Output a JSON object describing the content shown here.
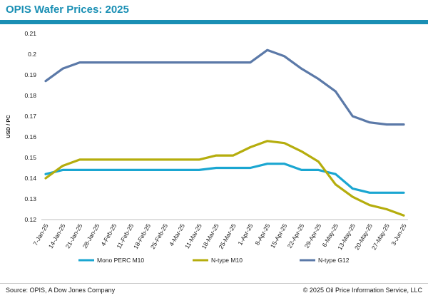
{
  "header": {
    "title": "OPIS Wafer Prices: 2025"
  },
  "footer": {
    "source": "Source: OPIS, A Dow Jones Company",
    "copyright": "© 2025 Oil Price Information Service, LLC"
  },
  "chart_data": {
    "type": "line",
    "title": "OPIS Wafer Prices: 2025",
    "xlabel": "",
    "ylabel": "USD / PC",
    "ylim": [
      0.12,
      0.21
    ],
    "yticks": [
      "0.12",
      "0.13",
      "0.14",
      "0.15",
      "0.16",
      "0.17",
      "0.18",
      "0.19",
      "0.2",
      "0.21"
    ],
    "grid": false,
    "legend_position": "bottom",
    "categories": [
      "7-Jan-25",
      "14-Jan-25",
      "21-Jan-25",
      "28-Jan-25",
      "4-Feb-25",
      "11-Feb-25",
      "18-Feb-25",
      "25-Feb-25",
      "4-Mar-25",
      "11-Mar-25",
      "18-Mar-25",
      "25-Mar-25",
      "1-Apr-25",
      "8-Apr-25",
      "15-Apr-25",
      "22-Apr-25",
      "29-Apr-25",
      "6-May-25",
      "13-May-25",
      "20-May-25",
      "27-May-25",
      "3-Jun-25"
    ],
    "series": [
      {
        "name": "Mono PERC M10",
        "color": "#1aa6d1",
        "values": [
          0.142,
          0.144,
          0.144,
          0.144,
          0.144,
          0.144,
          0.144,
          0.144,
          0.144,
          0.144,
          0.145,
          0.145,
          0.145,
          0.147,
          0.147,
          0.144,
          0.144,
          0.142,
          0.135,
          0.133,
          0.133,
          0.133
        ]
      },
      {
        "name": "N-type M10",
        "color": "#b5ad0d",
        "values": [
          0.14,
          0.146,
          0.149,
          0.149,
          0.149,
          0.149,
          0.149,
          0.149,
          0.149,
          0.149,
          0.151,
          0.151,
          0.155,
          0.158,
          0.157,
          0.153,
          0.148,
          0.137,
          0.131,
          0.127,
          0.125,
          0.122
        ]
      },
      {
        "name": "N-type G12",
        "color": "#5b79a8",
        "values": [
          0.187,
          0.193,
          0.196,
          0.196,
          0.196,
          0.196,
          0.196,
          0.196,
          0.196,
          0.196,
          0.196,
          0.196,
          0.196,
          0.202,
          0.199,
          0.193,
          0.188,
          0.182,
          0.17,
          0.167,
          0.166,
          0.166
        ]
      }
    ]
  }
}
